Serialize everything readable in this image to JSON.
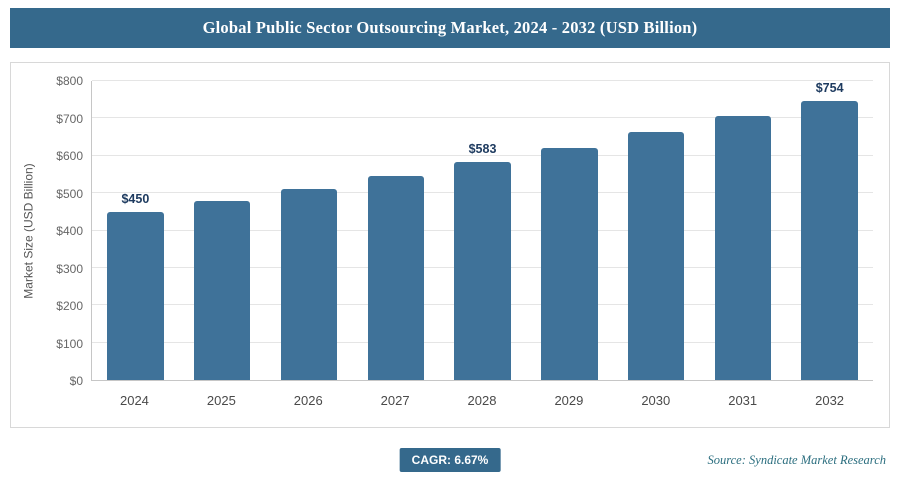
{
  "header": {
    "title": "Global Public Sector Outsourcing Market, 2024 - 2032 (USD Billion)"
  },
  "chart_data": {
    "type": "bar",
    "title": "Global Public Sector Outsourcing Market, 2024 - 2032 (USD Billion)",
    "categories": [
      "2024",
      "2025",
      "2026",
      "2027",
      "2028",
      "2029",
      "2030",
      "2031",
      "2032"
    ],
    "values": [
      450,
      480,
      512,
      546,
      583,
      621,
      663,
      707,
      754
    ],
    "bar_labels": [
      "$450",
      "",
      "",
      "",
      "$583",
      "",
      "",
      "",
      "$754"
    ],
    "ylabel": "Market Size (USD Billion)",
    "xlabel": "",
    "ylim": [
      0,
      800
    ],
    "ytick_step": 100,
    "ytick_labels": [
      "$0",
      "$100",
      "$200",
      "$300",
      "$400",
      "$500",
      "$600",
      "$700",
      "$800"
    ],
    "grid": true,
    "legend": false
  },
  "footer": {
    "cagr_label": "CAGR: 6.67%",
    "source": "Source: Syndicate Market Research"
  },
  "colors": {
    "header_bg": "#35698c",
    "bar": "#3f7299",
    "badge_bg": "#35698c",
    "bar_value_label": "#1d3a5f",
    "source_text": "#2b6e7f"
  }
}
